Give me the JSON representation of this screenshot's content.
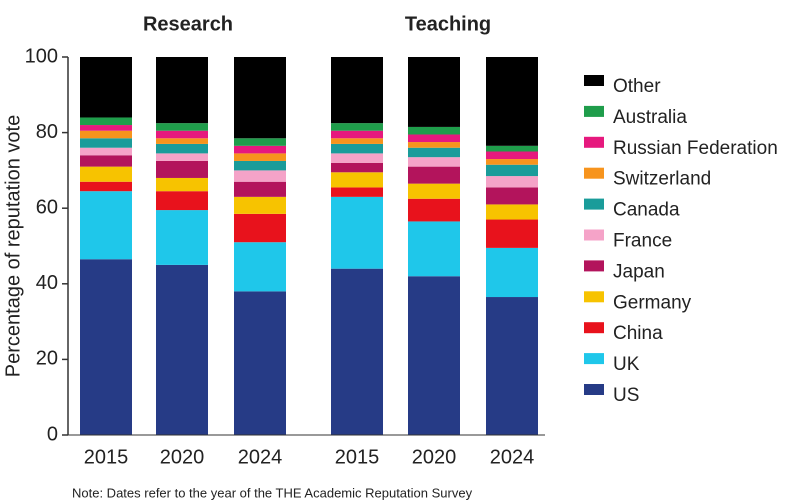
{
  "chart_data": [
    {
      "type": "bar",
      "stacked": true,
      "title": "Research",
      "ylabel": "Percentage of reputation vote",
      "categories": [
        "2015",
        "2020",
        "2024"
      ],
      "ylim": [
        0,
        100
      ],
      "yticks": [
        0,
        20,
        40,
        60,
        80,
        100
      ],
      "series": [
        {
          "name": "US",
          "color": "#263b86",
          "values": [
            46.5,
            45,
            38
          ]
        },
        {
          "name": "UK",
          "color": "#1fc7ea",
          "values": [
            18,
            14.5,
            13
          ]
        },
        {
          "name": "China",
          "color": "#e8121c",
          "values": [
            2.5,
            5,
            7.5
          ]
        },
        {
          "name": "Germany",
          "color": "#f7c300",
          "values": [
            4,
            3.5,
            4.5
          ]
        },
        {
          "name": "Japan",
          "color": "#b3145c",
          "values": [
            3,
            4.5,
            4
          ]
        },
        {
          "name": "France",
          "color": "#f5a3c8",
          "values": [
            2,
            2,
            3
          ]
        },
        {
          "name": "Canada",
          "color": "#1a9c9a",
          "values": [
            2.5,
            2.5,
            2.5
          ]
        },
        {
          "name": "Switzerland",
          "color": "#f7941d",
          "values": [
            2,
            1.5,
            2
          ]
        },
        {
          "name": "Russian Federation",
          "color": "#e6197e",
          "values": [
            1.5,
            2,
            2
          ]
        },
        {
          "name": "Australia",
          "color": "#1f9d4b",
          "values": [
            2,
            2,
            2
          ]
        },
        {
          "name": "Other",
          "color": "#000000",
          "values": [
            16,
            17.5,
            21.5
          ]
        }
      ]
    },
    {
      "type": "bar",
      "stacked": true,
      "title": "Teaching",
      "categories": [
        "2015",
        "2020",
        "2024"
      ],
      "ylim": [
        0,
        100
      ],
      "series": [
        {
          "name": "US",
          "color": "#263b86",
          "values": [
            44,
            42,
            36.5
          ]
        },
        {
          "name": "UK",
          "color": "#1fc7ea",
          "values": [
            19,
            14.5,
            13
          ]
        },
        {
          "name": "China",
          "color": "#e8121c",
          "values": [
            2.5,
            6,
            7.5
          ]
        },
        {
          "name": "Germany",
          "color": "#f7c300",
          "values": [
            4,
            4,
            4
          ]
        },
        {
          "name": "Japan",
          "color": "#b3145c",
          "values": [
            2.5,
            4.5,
            4.5
          ]
        },
        {
          "name": "France",
          "color": "#f5a3c8",
          "values": [
            2.5,
            2.5,
            3
          ]
        },
        {
          "name": "Canada",
          "color": "#1a9c9a",
          "values": [
            2.5,
            2.5,
            3
          ]
        },
        {
          "name": "Switzerland",
          "color": "#f7941d",
          "values": [
            1.5,
            1.5,
            1.5
          ]
        },
        {
          "name": "Russian Federation",
          "color": "#e6197e",
          "values": [
            2,
            2,
            2
          ]
        },
        {
          "name": "Australia",
          "color": "#1f9d4b",
          "values": [
            2,
            2,
            1.5
          ]
        },
        {
          "name": "Other",
          "color": "#000000",
          "values": [
            17.5,
            18.5,
            23.5
          ]
        }
      ]
    }
  ],
  "note": "Note: Dates refer to the year of the THE Academic Reputation Survey"
}
